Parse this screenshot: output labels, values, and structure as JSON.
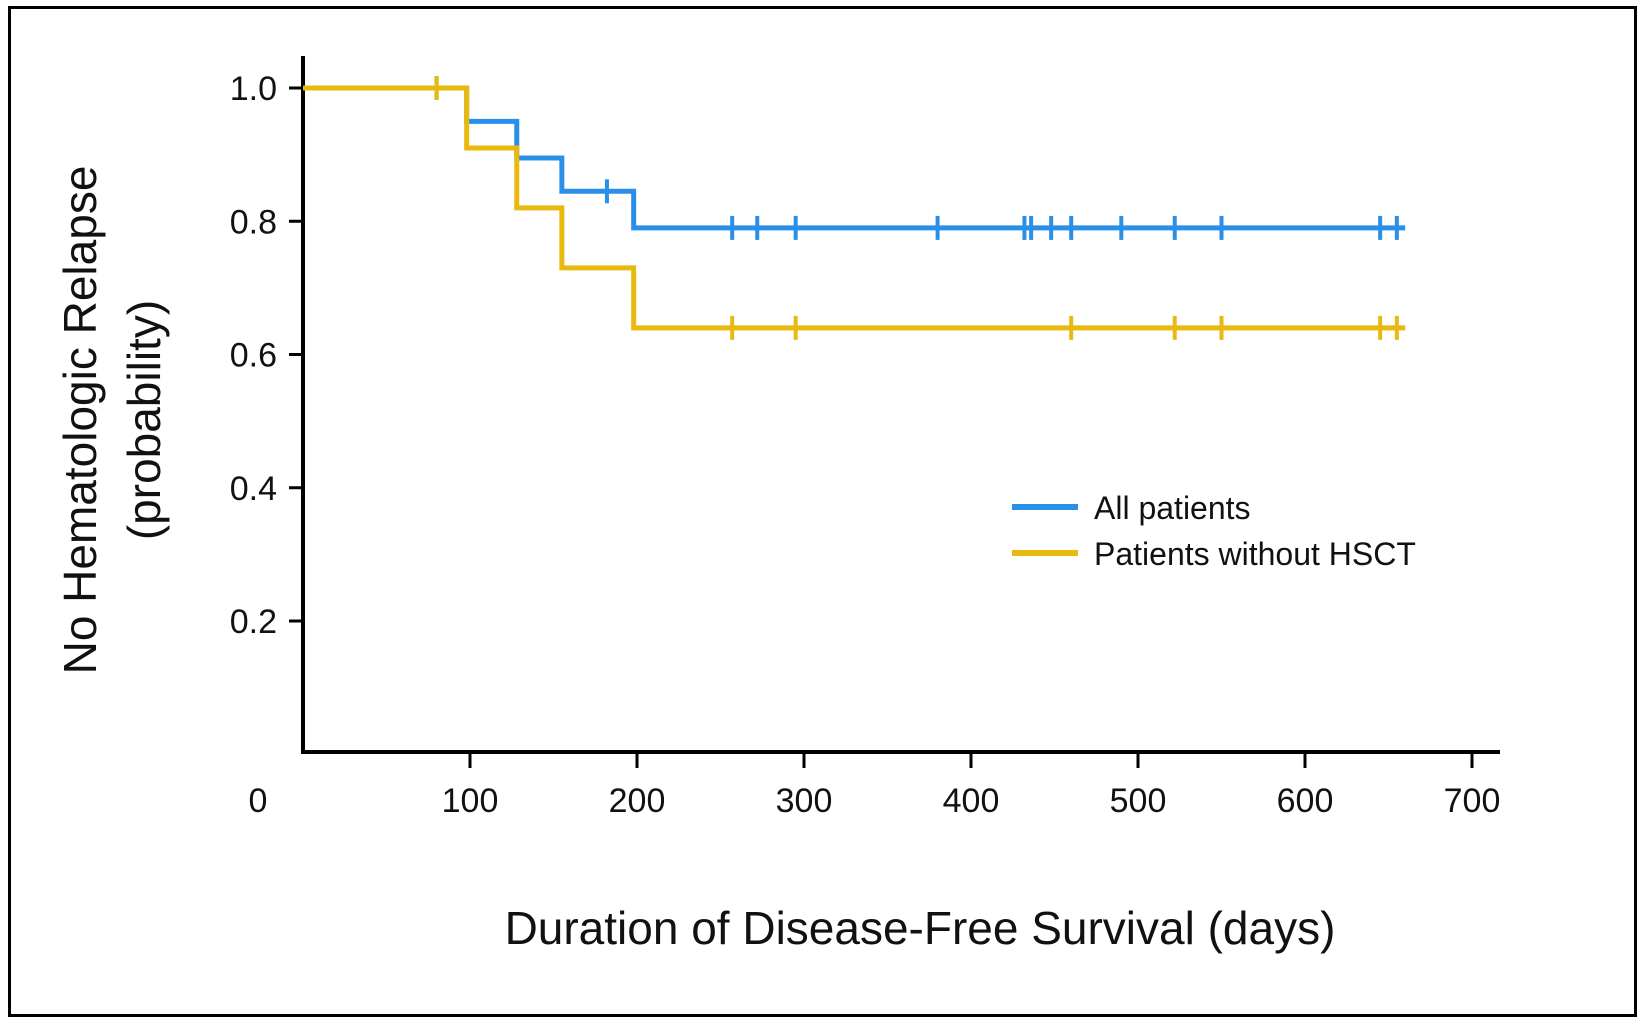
{
  "chart_data": {
    "type": "line",
    "step": true,
    "xlabel": "Duration of Disease-Free Survival (days)",
    "ylabel_line1": "No Hematologic Relapse",
    "ylabel_line2": "(probability)",
    "xlim": [
      0,
      720
    ],
    "ylim": [
      0,
      1.05
    ],
    "x_ticks": [
      0,
      100,
      200,
      300,
      400,
      500,
      600,
      700
    ],
    "x_tick_labels": [
      "0",
      "100",
      "200",
      "300",
      "400",
      "500",
      "600",
      "700"
    ],
    "y_ticks": [
      0.2,
      0.4,
      0.6,
      0.8,
      1.0
    ],
    "y_tick_labels": [
      "0.2",
      "0.4",
      "0.6",
      "0.8",
      "1.0"
    ],
    "grid": false,
    "legend_position": "center-right",
    "series": [
      {
        "name": "All patients",
        "color": "#2a8fe8",
        "steps": [
          [
            0,
            1.0
          ],
          [
            98,
            0.95
          ],
          [
            128,
            0.895
          ],
          [
            155,
            0.845
          ],
          [
            198,
            0.79
          ]
        ],
        "end_x": 660,
        "censored": [
          [
            80,
            1.0
          ],
          [
            182,
            0.845
          ],
          [
            257,
            0.79
          ],
          [
            272,
            0.79
          ],
          [
            295,
            0.79
          ],
          [
            380,
            0.79
          ],
          [
            432,
            0.79
          ],
          [
            436,
            0.79
          ],
          [
            448,
            0.79
          ],
          [
            460,
            0.79
          ],
          [
            490,
            0.79
          ],
          [
            522,
            0.79
          ],
          [
            550,
            0.79
          ],
          [
            645,
            0.79
          ],
          [
            655,
            0.79
          ]
        ]
      },
      {
        "name": "Patients without HSCT",
        "color": "#e8b90f",
        "steps": [
          [
            0,
            1.0
          ],
          [
            98,
            0.91
          ],
          [
            128,
            0.82
          ],
          [
            155,
            0.73
          ],
          [
            198,
            0.64
          ]
        ],
        "end_x": 660,
        "censored": [
          [
            80,
            1.0
          ],
          [
            257,
            0.64
          ],
          [
            295,
            0.64
          ],
          [
            460,
            0.64
          ],
          [
            522,
            0.64
          ],
          [
            550,
            0.64
          ],
          [
            645,
            0.64
          ],
          [
            655,
            0.64
          ]
        ]
      }
    ]
  }
}
